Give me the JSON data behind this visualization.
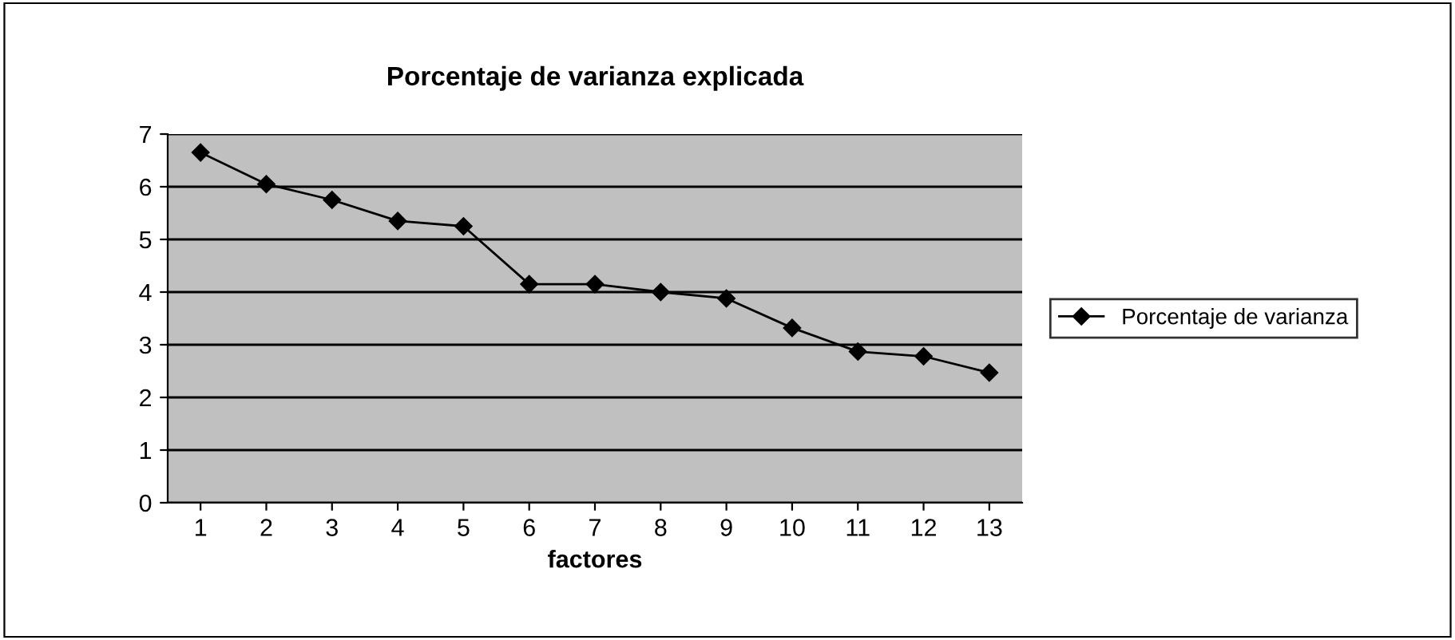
{
  "chart_data": {
    "type": "line",
    "title": "Porcentaje de varianza explicada",
    "xlabel": "factores",
    "categories": [
      "1",
      "2",
      "3",
      "4",
      "5",
      "6",
      "7",
      "8",
      "9",
      "10",
      "11",
      "12",
      "13"
    ],
    "series": [
      {
        "name": "Porcentaje de varianza",
        "color": "#000000",
        "values": [
          6.65,
          6.05,
          5.75,
          5.35,
          5.25,
          4.15,
          4.15,
          4.0,
          3.88,
          3.32,
          2.87,
          2.78,
          2.47
        ]
      }
    ],
    "ylim": [
      0,
      7
    ],
    "yticks": [
      0,
      1,
      2,
      3,
      4,
      5,
      6,
      7
    ],
    "grid": "y",
    "legend": "right",
    "marker": "diamond",
    "line_style": "solid"
  }
}
